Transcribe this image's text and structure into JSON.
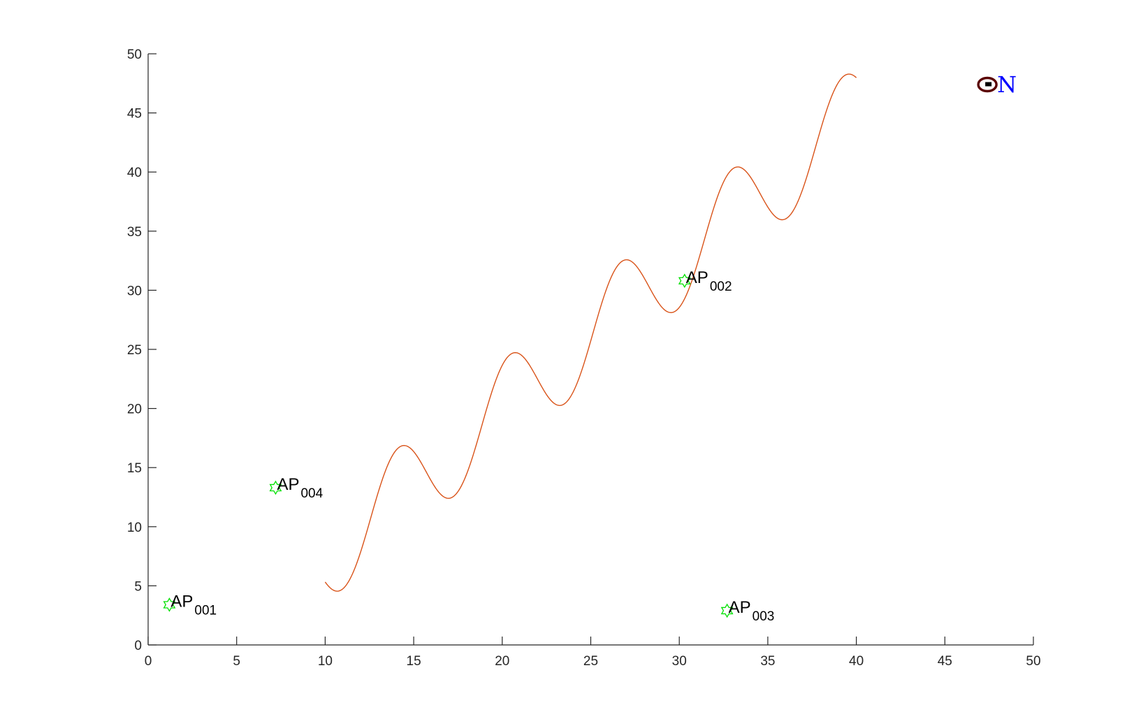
{
  "chart_data": {
    "type": "line",
    "title": "",
    "xlabel": "",
    "ylabel": "",
    "xlim": [
      0,
      50
    ],
    "ylim": [
      0,
      50
    ],
    "xticks": [
      "0",
      "5",
      "10",
      "15",
      "20",
      "25",
      "30",
      "35",
      "40",
      "45",
      "50"
    ],
    "yticks": [
      "0",
      "5",
      "10",
      "15",
      "20",
      "25",
      "30",
      "35",
      "40",
      "45",
      "50"
    ],
    "grid": false,
    "series": [
      {
        "color": "#d95319",
        "function": "y = 1.25*x - 5 + 4*sin(x)",
        "x_range": [
          10,
          40
        ],
        "x": [
          10,
          10.85,
          12.0,
          14.35,
          17.0,
          20.65,
          23.35,
          26.95,
          29.65,
          33.2,
          35.9,
          39.5,
          40
        ],
        "y": [
          7.3,
          5.9,
          10.8,
          19.2,
          12.3,
          25.5,
          18.5,
          31.8,
          24.8,
          38.1,
          31.1,
          44.4,
          43.7
        ]
      }
    ],
    "access_points": [
      {
        "prefix": "AP",
        "subscript": "001",
        "x": 1.2,
        "y": 3.4,
        "marker_color": "#00e000"
      },
      {
        "prefix": "AP",
        "subscript": "002",
        "x": 30.3,
        "y": 30.8,
        "marker_color": "#00e000"
      },
      {
        "prefix": "AP",
        "subscript": "003",
        "x": 32.7,
        "y": 2.9,
        "marker_color": "#00e000"
      },
      {
        "prefix": "AP",
        "subscript": "004",
        "x": 7.2,
        "y": 13.3,
        "marker_color": "#00e000"
      }
    ],
    "node": {
      "label": "N",
      "x": 47.4,
      "y": 47.4,
      "marker_color": "#5a0000",
      "label_color": "#0000ff"
    }
  }
}
